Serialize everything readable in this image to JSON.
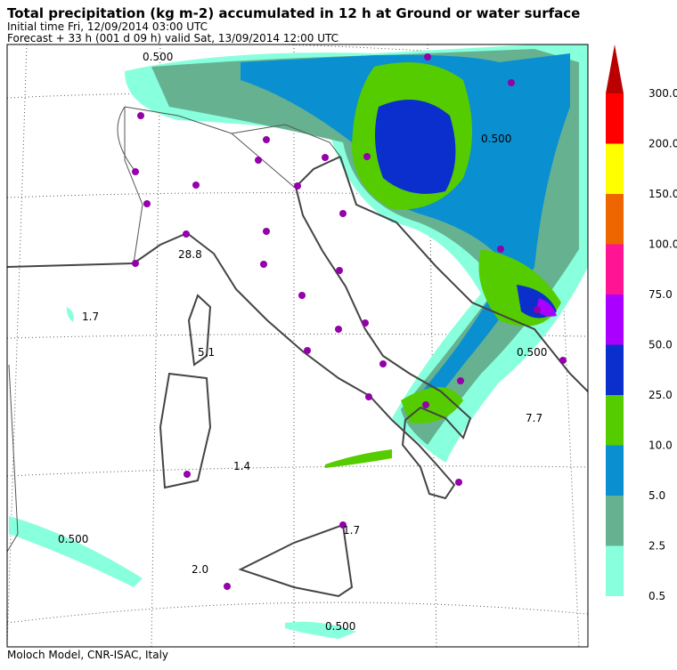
{
  "header": {
    "title": "Total precipitation (kg m-2) accumulated in  12 h at Ground or water surface",
    "initial_time": "Initial time  Fri, 12/09/2014  03:00 UTC",
    "forecast": "Forecast  +  33 h  (001 d 09 h)  valid Sat, 13/09/2014 12:00 UTC"
  },
  "colorbar": {
    "levels": [
      "0.5",
      "2.5",
      "5.0",
      "10.0",
      "25.0",
      "50.0",
      "75.0",
      "100.0",
      "150.0",
      "200.0",
      "300.0"
    ],
    "colors": [
      "#88ffdd",
      "#66b290",
      "#0a8fd0",
      "#55cc00",
      "#0a2fcc",
      "#aa00ff",
      "#ff1493",
      "#ee6600",
      "#ffff00",
      "#ff0000",
      "#bb0000"
    ]
  },
  "map_labels": [
    "0.500",
    "28.8",
    "1.7",
    "5.1",
    "1.4",
    "2.0",
    "0.500",
    "0.500",
    "0.500",
    "0.500",
    "1.7",
    "7.7"
  ],
  "footer": "Moloch Model, CNR-ISAC, Italy"
}
